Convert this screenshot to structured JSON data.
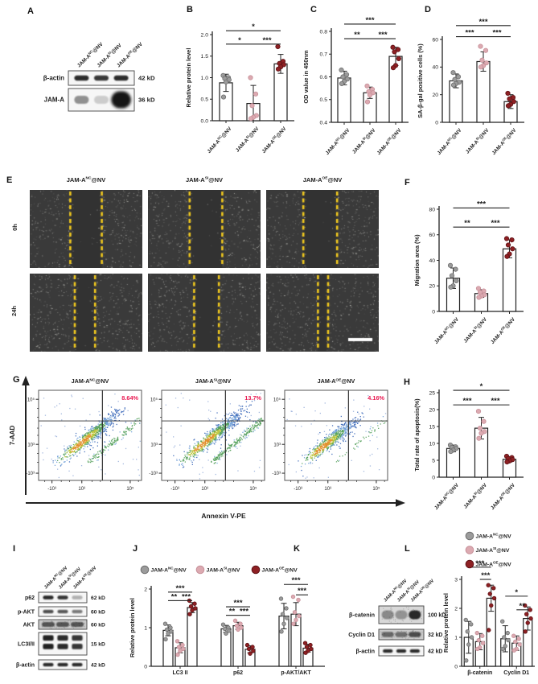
{
  "colors": {
    "nc": "#9b9b9b",
    "nc_stroke": "#6f6f6f",
    "si": "#dcaab1",
    "si_stroke": "#c7919a",
    "oe": "#8e2023",
    "oe_stroke": "#5f1317",
    "axis": "#222222",
    "percent": "#e8174f",
    "yellow": "#f0c81e"
  },
  "group_labels": [
    "JAM-A^NC@NV",
    "JAM-A^SI@NV",
    "JAM-A^OE@NV"
  ],
  "panels": {
    "A": {
      "letter": "A",
      "lanes": [
        "JAM-A^NC@NV",
        "JAM-A^SI@NV",
        "JAM-A^OE@NV"
      ],
      "rows": [
        {
          "name": "β-actin",
          "kd": "42 kD",
          "bands": [
            0.9,
            0.85,
            0.9
          ],
          "style": "sharp"
        },
        {
          "name": "JAM-A",
          "kd": "36 kD",
          "bands": [
            0.45,
            0.18,
            1.0
          ],
          "style": "sharp",
          "blob": 2
        }
      ]
    },
    "B": {
      "letter": "B"
    },
    "C": {
      "letter": "C"
    },
    "D": {
      "letter": "D"
    },
    "E": {
      "letter": "E",
      "column_titles": [
        "JAM-A^NC@NV",
        "JAM-A^SI@NV",
        "JAM-A^OE@NV"
      ],
      "row_labels": [
        "0h",
        "24h"
      ],
      "gaps": [
        [
          [
            0.36,
            0.64
          ],
          [
            0.37,
            0.66
          ],
          [
            0.33,
            0.63
          ]
        ],
        [
          [
            0.4,
            0.58
          ],
          [
            0.41,
            0.63
          ],
          [
            0.46,
            0.55
          ]
        ]
      ],
      "scalebar_image": 5
    },
    "F": {
      "letter": "F"
    },
    "G": {
      "letter": "G"
    },
    "H": {
      "letter": "H"
    },
    "I": {
      "letter": "I",
      "lanes": [
        "JAM-A^NC@NV",
        "JAM-A^SI@NV",
        "JAM-A^OE@NV"
      ],
      "rows": [
        {
          "name": "p62",
          "kd": "62 kD",
          "bands": [
            0.9,
            0.85,
            0.3
          ],
          "style": "sharp"
        },
        {
          "name": "p-AKT",
          "kd": "60 kD",
          "bands": [
            0.75,
            0.7,
            0.55
          ],
          "style": "sharp"
        },
        {
          "name": "AKT",
          "kd": "60 kD",
          "bands": [
            0.65,
            0.65,
            0.65
          ],
          "style": "smear"
        },
        {
          "name": "LC3I/II",
          "kd": "15 kD",
          "bands": [
            0.95,
            0.9,
            0.85
          ],
          "style": "double"
        },
        {
          "name": "β-actin",
          "kd": "42 kD",
          "bands": [
            0.9,
            0.9,
            0.9
          ],
          "style": "sharp"
        }
      ]
    },
    "J": {
      "letter": "J"
    },
    "K": {
      "letter": "K",
      "lanes": [
        "JAM-A^NC@NV",
        "JAM-A^SI@NV",
        "JAM-A^OE@NV"
      ],
      "rows": [
        {
          "name": "β-catenin",
          "kd": "100 kD",
          "bands": [
            0.4,
            0.35,
            0.9
          ],
          "style": "noisy"
        },
        {
          "name": "Cyclin D1",
          "kd": "32 kD",
          "bands": [
            0.55,
            0.5,
            0.7
          ],
          "style": "smear"
        },
        {
          "name": "β-actin",
          "kd": "42 kD",
          "bands": [
            0.9,
            0.9,
            0.9
          ],
          "style": "sharp"
        }
      ]
    },
    "L": {
      "letter": "L"
    }
  },
  "chart_data": [
    {
      "id": "B",
      "type": "bar",
      "categories": [
        "JAM-A^NC@NV",
        "JAM-A^SI@NV",
        "JAM-A^OE@NV"
      ],
      "values": [
        0.88,
        0.4,
        1.32
      ],
      "errors": [
        0.2,
        0.42,
        0.22
      ],
      "dots": [
        [
          1.05,
          1.0,
          0.98,
          0.95,
          0.9,
          0.55
        ],
        [
          1.0,
          0.62,
          0.35,
          0.12,
          0.08,
          0.05
        ],
        [
          1.72,
          1.38,
          1.33,
          1.3,
          1.25,
          1.2
        ]
      ],
      "ylabel": "Relative protein level",
      "ylim": [
        0,
        2
      ],
      "yticks": [
        "0.0",
        "0.5",
        "1.0",
        "1.5",
        "2.0"
      ],
      "sig": [
        [
          0,
          1,
          "*",
          1.78
        ],
        [
          1,
          2,
          "***",
          1.78
        ],
        [
          0,
          2,
          "*",
          2.09
        ]
      ]
    },
    {
      "id": "C",
      "type": "bar",
      "categories": [
        "JAM-A^NC@NV",
        "JAM-A^SI@NV",
        "JAM-A^OE@NV"
      ],
      "values": [
        0.595,
        0.53,
        0.69
      ],
      "errors": [
        0.03,
        0.025,
        0.04
      ],
      "dots": [
        [
          0.63,
          0.61,
          0.6,
          0.59,
          0.58,
          0.57
        ],
        [
          0.56,
          0.545,
          0.535,
          0.53,
          0.52,
          0.49
        ],
        [
          0.73,
          0.72,
          0.71,
          0.68,
          0.65,
          0.64
        ]
      ],
      "ylabel": "OD value in 450nm",
      "ylim": [
        0.4,
        0.8
      ],
      "yticks": [
        "0.4",
        "0.5",
        "0.6",
        "0.7",
        "0.8"
      ],
      "sig": [
        [
          0,
          1,
          "**",
          0.768
        ],
        [
          1,
          2,
          "***",
          0.768
        ],
        [
          0,
          2,
          "***",
          0.832
        ]
      ]
    },
    {
      "id": "D",
      "type": "bar",
      "categories": [
        "JAM-A^NC@NV",
        "JAM-A^SI@NV",
        "JAM-A^OE@NV"
      ],
      "values": [
        30,
        44,
        15
      ],
      "errors": [
        5,
        7,
        5
      ],
      "dots": [
        [
          36,
          33,
          31,
          29,
          28,
          27
        ],
        [
          55,
          52,
          45,
          43,
          41,
          40
        ],
        [
          21,
          18,
          17,
          15,
          13,
          12
        ]
      ],
      "ylabel": "SA-β-gal positive cells (%)",
      "ylim": [
        0,
        60
      ],
      "yticks": [
        "0",
        "20",
        "40",
        "60"
      ],
      "sig": [
        [
          0,
          1,
          "***",
          62
        ],
        [
          1,
          2,
          "***",
          62
        ],
        [
          0,
          2,
          "***",
          70
        ]
      ]
    },
    {
      "id": "F",
      "type": "bar",
      "categories": [
        "JAM-A^NC@NV",
        "JAM-A^SI@NV",
        "JAM-A^OE@NV"
      ],
      "values": [
        26,
        14,
        49
      ],
      "errors": [
        8,
        3,
        7
      ],
      "dots": [
        [
          36,
          33,
          28,
          24,
          20,
          19
        ],
        [
          18,
          16,
          15,
          13,
          12,
          11
        ],
        [
          57,
          56,
          52,
          49,
          45,
          43
        ]
      ],
      "ylabel": "Migration area (%)",
      "ylim": [
        0,
        80
      ],
      "yticks": [
        "0",
        "20",
        "40",
        "60",
        "80"
      ],
      "sig": [
        [
          0,
          1,
          "**",
          66
        ],
        [
          1,
          2,
          "***",
          66
        ],
        [
          0,
          2,
          "***",
          81
        ]
      ]
    },
    {
      "id": "H",
      "type": "bar",
      "categories": [
        "JAM-A^NC@NV",
        "JAM-A^SI@NV",
        "JAM-A^OE@NV"
      ],
      "values": [
        8.5,
        14.5,
        5.3
      ],
      "errors": [
        1,
        3.2,
        0.8
      ],
      "dots": [
        [
          9.5,
          9,
          8.8,
          8.5,
          8,
          7.6
        ],
        [
          19.5,
          16.5,
          14.5,
          13.5,
          13,
          11.5
        ],
        [
          6.2,
          5.8,
          5.5,
          5.2,
          4.8,
          4.5
        ]
      ],
      "ylabel": "Total rate of apoptosis(%)",
      "ylim": [
        0,
        25
      ],
      "yticks": [
        "0",
        "5",
        "10",
        "15",
        "20",
        "25"
      ],
      "sig": [
        [
          0,
          1,
          "***",
          21.4
        ],
        [
          1,
          2,
          "***",
          21.4
        ],
        [
          0,
          2,
          "*",
          25.7
        ]
      ]
    },
    {
      "id": "G",
      "type": "scatter",
      "plots": [
        {
          "title": "JAM-A^NC@NV",
          "percent": "8.64%"
        },
        {
          "title": "JAM-A^SI@NV",
          "percent": "13.7%"
        },
        {
          "title": "JAM-A^OE@NV",
          "percent": "4.16%"
        }
      ],
      "xlabel": "Annexin V-PE",
      "ylabel": "7-AAD",
      "yticks": [
        "10⁵",
        "10³",
        "-10³"
      ],
      "xticks": [
        "-10³",
        "10³",
        "10⁵"
      ]
    },
    {
      "id": "J",
      "type": "grouped_bar",
      "categories": [
        "LC3 II",
        "p62",
        "p-AKT/AKT"
      ],
      "ylabel": "Relative protein level",
      "ylim": [
        0,
        2
      ],
      "yticks": [
        "0",
        "1",
        "2"
      ],
      "series": [
        {
          "name": "JAM-A^NC@NV",
          "key": "nc",
          "values": [
            0.93,
            0.97,
            1.3
          ],
          "errors": [
            0.14,
            0.09,
            0.33
          ],
          "dots": [
            [
              1.1,
              1.0,
              0.95,
              0.9,
              0.85,
              0.7
            ],
            [
              1.08,
              1.0,
              0.97,
              0.92,
              0.85
            ],
            [
              1.75,
              1.5,
              1.35,
              1.25,
              1.1,
              0.9
            ]
          ]
        },
        {
          "name": "JAM-A^SI@NV",
          "key": "si",
          "values": [
            0.48,
            1.05,
            1.35
          ],
          "errors": [
            0.13,
            0.09,
            0.3
          ],
          "dots": [
            [
              0.65,
              0.55,
              0.5,
              0.45,
              0.4,
              0.3
            ],
            [
              1.18,
              1.1,
              1.05,
              1.0,
              0.95
            ],
            [
              1.8,
              1.72,
              1.4,
              1.3,
              1.2,
              1.1
            ]
          ]
        },
        {
          "name": "JAM-A^OE@NV",
          "key": "oe",
          "values": [
            1.52,
            0.44,
            0.47
          ],
          "errors": [
            0.13,
            0.09,
            0.1
          ],
          "dots": [
            [
              1.7,
              1.62,
              1.55,
              1.5,
              1.45,
              1.35
            ],
            [
              0.55,
              0.5,
              0.45,
              0.4,
              0.33
            ],
            [
              0.6,
              0.55,
              0.5,
              0.45,
              0.4,
              0.35
            ]
          ]
        }
      ],
      "sig": [
        {
          "cat": 0,
          "pairs": [
            [
              0,
              2,
              "***",
              1.92
            ],
            [
              0,
              1,
              "**",
              1.7
            ],
            [
              1,
              2,
              "***",
              1.7
            ]
          ]
        },
        {
          "cat": 1,
          "pairs": [
            [
              0,
              2,
              "***",
              1.54
            ],
            [
              0,
              1,
              "**",
              1.32
            ],
            [
              1,
              2,
              "***",
              1.32
            ]
          ]
        },
        {
          "cat": 2,
          "pairs": [
            [
              0,
              2,
              "***",
              2.12
            ],
            [
              1,
              2,
              "***",
              1.85
            ]
          ]
        }
      ],
      "legend": true
    },
    {
      "id": "L",
      "type": "grouped_bar",
      "categories": [
        "β-catenin",
        "Cyclin D1"
      ],
      "ylabel": "Relative protein level",
      "ylim": [
        0,
        3
      ],
      "yticks": [
        "0",
        "1",
        "2",
        "3"
      ],
      "series": [
        {
          "name": "JAM-A^NC@NV",
          "key": "nc",
          "values": [
            1.0,
            0.95
          ],
          "errors": [
            0.55,
            0.45
          ],
          "dots": [
            [
              1.6,
              1.45,
              1.2,
              1.0,
              0.75,
              0.2
            ],
            [
              1.55,
              1.15,
              1.0,
              0.9,
              0.7,
              0.6
            ]
          ]
        },
        {
          "name": "JAM-A^SI@NV",
          "key": "si",
          "values": [
            0.85,
            0.8
          ],
          "errors": [
            0.28,
            0.25
          ],
          "dots": [
            [
              1.15,
              1.05,
              0.9,
              0.8,
              0.65,
              0.6
            ],
            [
              1.05,
              0.95,
              0.85,
              0.75,
              0.6,
              0.55
            ]
          ]
        },
        {
          "name": "JAM-A^OE@NV",
          "key": "oe",
          "values": [
            2.35,
            1.65
          ],
          "errors": [
            0.45,
            0.4
          ],
          "dots": [
            [
              2.8,
              2.7,
              2.5,
              2.35,
              2.1,
              1.25
            ],
            [
              2.1,
              1.95,
              1.8,
              1.65,
              1.5,
              1.2
            ]
          ]
        }
      ],
      "sig": [
        {
          "cat": 0,
          "pairs": [
            [
              0,
              2,
              "***",
              3.42
            ],
            [
              1,
              2,
              "***",
              3.0
            ]
          ]
        },
        {
          "cat": 1,
          "pairs": [
            [
              0,
              2,
              "*",
              2.42
            ],
            [
              1,
              2,
              "**",
              1.95
            ]
          ]
        }
      ],
      "legend": true
    }
  ]
}
